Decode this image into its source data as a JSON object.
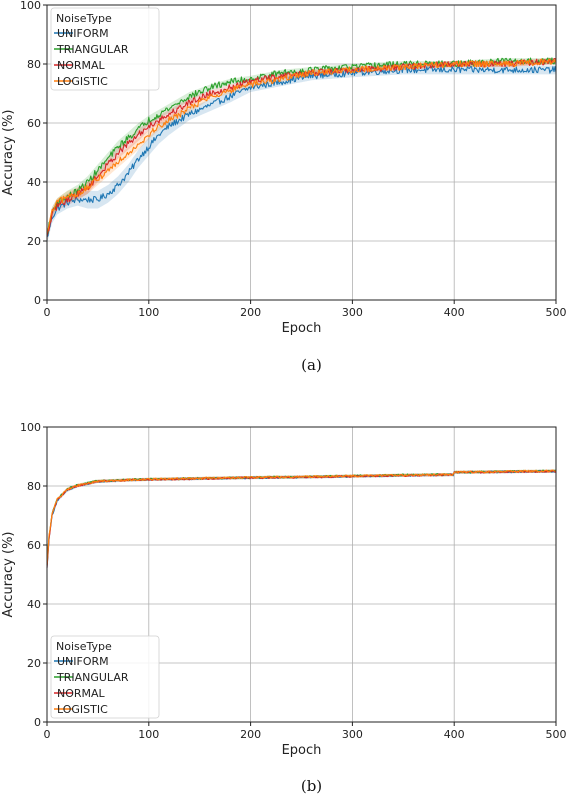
{
  "chart_data": [
    {
      "type": "line",
      "caption": "(a)",
      "xlabel": "Epoch",
      "ylabel": "Accuracy (%)",
      "xlim": [
        0,
        500
      ],
      "ylim": [
        0,
        100
      ],
      "xticks": [
        0,
        100,
        200,
        300,
        400,
        500
      ],
      "yticks": [
        0,
        20,
        40,
        60,
        80,
        100
      ],
      "grid": true,
      "legend": {
        "title": "NoiseType",
        "placement": "top-left"
      },
      "series": [
        {
          "name": "UNIFORM",
          "color": "#1f77b4",
          "x": [
            0,
            5,
            10,
            20,
            30,
            40,
            50,
            60,
            70,
            80,
            90,
            100,
            110,
            120,
            140,
            160,
            180,
            200,
            230,
            260,
            300,
            350,
            400,
            450,
            500
          ],
          "y": [
            21,
            28,
            31,
            33,
            34,
            34,
            34,
            36,
            39,
            43,
            48,
            52,
            56,
            59,
            63,
            66,
            69,
            72,
            74,
            76,
            77,
            78,
            78,
            78,
            78
          ],
          "band": [
            2,
            2,
            2,
            2,
            2,
            3,
            3,
            3,
            3,
            3,
            3,
            3,
            3,
            3,
            2,
            2,
            2,
            1.5,
            1.5,
            1.5,
            1.5,
            1.5,
            1.5,
            1.5,
            1.5
          ]
        },
        {
          "name": "TRIANGULAR",
          "color": "#2ca02c",
          "x": [
            0,
            5,
            10,
            20,
            30,
            40,
            50,
            60,
            70,
            80,
            90,
            100,
            110,
            120,
            140,
            160,
            180,
            200,
            230,
            260,
            300,
            350,
            400,
            450,
            500
          ],
          "y": [
            22,
            30,
            33,
            35,
            37,
            40,
            44,
            48,
            52,
            55,
            58,
            61,
            63,
            65,
            69,
            72,
            74,
            75,
            77,
            78,
            79,
            80,
            80,
            81,
            81
          ],
          "band": [
            1.5,
            1.5,
            1.5,
            2,
            2,
            2,
            2,
            2,
            2,
            2,
            2,
            1.5,
            1.5,
            1.5,
            1.5,
            1,
            1,
            1,
            1,
            1,
            1,
            1,
            1,
            1,
            1
          ]
        },
        {
          "name": "NORMAL",
          "color": "#d62728",
          "x": [
            0,
            5,
            10,
            20,
            30,
            40,
            50,
            60,
            70,
            80,
            90,
            100,
            110,
            120,
            140,
            160,
            180,
            200,
            230,
            260,
            300,
            350,
            400,
            450,
            500
          ],
          "y": [
            21,
            29,
            32,
            34,
            36,
            38,
            42,
            46,
            50,
            53,
            56,
            59,
            61,
            63,
            67,
            70,
            72,
            74,
            76,
            77,
            78,
            79,
            80,
            80,
            81
          ],
          "band": [
            1.5,
            1.5,
            1.5,
            2,
            2,
            2,
            2,
            2,
            2,
            2,
            2,
            1.5,
            1.5,
            1.5,
            1.5,
            1,
            1,
            1,
            1,
            1,
            1,
            1,
            1,
            1,
            1
          ]
        },
        {
          "name": "LOGISTIC",
          "color": "#ff7f0e",
          "x": [
            0,
            5,
            10,
            20,
            30,
            40,
            50,
            60,
            70,
            80,
            90,
            100,
            110,
            120,
            140,
            160,
            180,
            200,
            230,
            260,
            300,
            350,
            400,
            450,
            500
          ],
          "y": [
            22,
            30,
            33,
            35,
            36,
            38,
            41,
            44,
            47,
            50,
            53,
            56,
            59,
            61,
            65,
            69,
            71,
            73,
            75,
            77,
            78,
            79,
            80,
            80,
            81
          ],
          "band": [
            1.5,
            1.5,
            1.5,
            2,
            2,
            2,
            2,
            2,
            2,
            2,
            2,
            1.5,
            1.5,
            1.5,
            1.5,
            1,
            1,
            1,
            1,
            1,
            1,
            1,
            1,
            1,
            1
          ]
        }
      ]
    },
    {
      "type": "line",
      "caption": "(b)",
      "xlabel": "Epoch",
      "ylabel": "Accuracy (%)",
      "xlim": [
        0,
        500
      ],
      "ylim": [
        0,
        100
      ],
      "xticks": [
        0,
        100,
        200,
        300,
        400,
        500
      ],
      "yticks": [
        0,
        20,
        40,
        60,
        80,
        100
      ],
      "grid": true,
      "legend": {
        "title": "NoiseType",
        "placement": "bottom-left"
      },
      "series": [
        {
          "name": "UNIFORM",
          "color": "#1f77b4",
          "x": [
            0,
            2,
            5,
            10,
            20,
            30,
            50,
            80,
            100,
            150,
            200,
            250,
            300,
            350,
            399,
            400,
            450,
            500
          ],
          "y": [
            52,
            62,
            70,
            75,
            78.5,
            80,
            81.5,
            82,
            82.2,
            82.5,
            82.8,
            83,
            83.3,
            83.6,
            83.8,
            84.6,
            84.8,
            85
          ],
          "band": [
            0.5,
            0.5,
            0.5,
            0.5,
            0.5,
            0.5,
            0.5,
            0.5,
            0.5,
            0.5,
            0.5,
            0.5,
            0.5,
            0.5,
            0.5,
            0.5,
            0.5,
            0.5
          ]
        },
        {
          "name": "TRIANGULAR",
          "color": "#2ca02c",
          "x": [
            0,
            2,
            5,
            10,
            20,
            30,
            50,
            80,
            100,
            150,
            200,
            250,
            300,
            350,
            399,
            400,
            450,
            500
          ],
          "y": [
            53,
            63,
            71,
            75.5,
            79,
            80.3,
            81.7,
            82.1,
            82.3,
            82.6,
            82.9,
            83.1,
            83.4,
            83.7,
            83.9,
            84.7,
            84.9,
            85.1
          ],
          "band": [
            0.5,
            0.5,
            0.5,
            0.5,
            0.5,
            0.5,
            0.5,
            0.5,
            0.5,
            0.5,
            0.5,
            0.5,
            0.5,
            0.5,
            0.5,
            0.5,
            0.5,
            0.5
          ]
        },
        {
          "name": "NORMAL",
          "color": "#d62728",
          "x": [
            0,
            2,
            5,
            10,
            20,
            30,
            50,
            80,
            100,
            150,
            200,
            250,
            300,
            350,
            399,
            400,
            450,
            500
          ],
          "y": [
            52,
            62,
            70.5,
            75.2,
            78.8,
            80.1,
            81.6,
            82,
            82.2,
            82.5,
            82.8,
            83,
            83.3,
            83.6,
            83.8,
            84.6,
            84.8,
            85
          ],
          "band": [
            0.5,
            0.5,
            0.5,
            0.5,
            0.5,
            0.5,
            0.5,
            0.5,
            0.5,
            0.5,
            0.5,
            0.5,
            0.5,
            0.5,
            0.5,
            0.5,
            0.5,
            0.5
          ]
        },
        {
          "name": "LOGISTIC",
          "color": "#ff7f0e",
          "x": [
            0,
            2,
            5,
            10,
            20,
            30,
            50,
            80,
            100,
            150,
            200,
            250,
            300,
            350,
            399,
            400,
            450,
            500
          ],
          "y": [
            53,
            63,
            70.8,
            75.4,
            78.9,
            80.2,
            81.6,
            82.1,
            82.3,
            82.6,
            82.9,
            83.1,
            83.4,
            83.7,
            83.9,
            84.7,
            84.9,
            85.1
          ],
          "band": [
            0.5,
            0.5,
            0.5,
            0.5,
            0.5,
            0.5,
            0.5,
            0.5,
            0.5,
            0.5,
            0.5,
            0.5,
            0.5,
            0.5,
            0.5,
            0.5,
            0.5,
            0.5
          ]
        }
      ]
    }
  ]
}
